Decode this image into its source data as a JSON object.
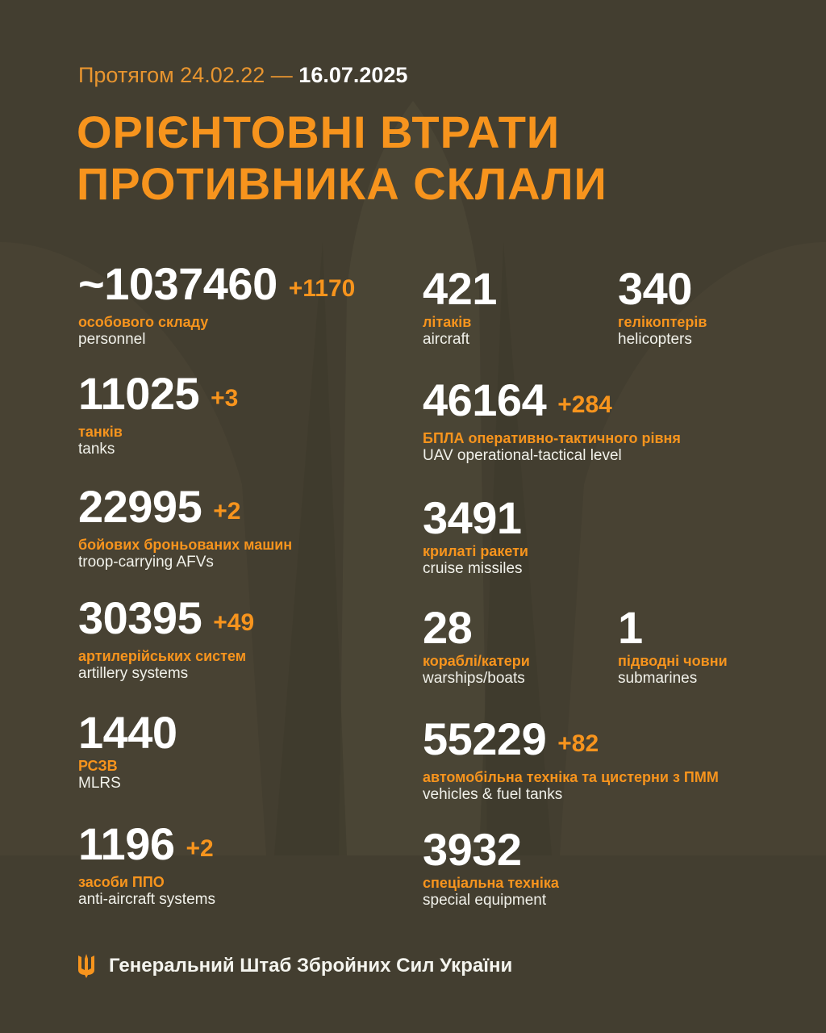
{
  "header": {
    "period_prefix": "Протягом 24.02.22 —",
    "period_date": "16.07.2025",
    "title_line1": "ОРІЄНТОВНІ ВТРАТИ",
    "title_line2": "ПРОТИВНИКА СКЛАЛИ"
  },
  "stats": [
    {
      "value": "~1037460",
      "delta": "+1170",
      "ua": "особового складу",
      "en": "personnel"
    },
    {
      "value": "11025",
      "delta": "+3",
      "ua": "танків",
      "en": "tanks"
    },
    {
      "value": "22995",
      "delta": "+2",
      "ua": "бойових броньованих машин",
      "en": "troop-carrying AFVs"
    },
    {
      "value": "30395",
      "delta": "+49",
      "ua": "артилерійських систем",
      "en": "artillery systems"
    },
    {
      "value": "1440",
      "delta": "",
      "ua": "РСЗВ",
      "en": "MLRS"
    },
    {
      "value": "1196",
      "delta": "+2",
      "ua": "засоби ППО",
      "en": "anti-aircraft systems"
    },
    {
      "value": "421",
      "delta": "",
      "ua": "літаків",
      "en": "aircraft"
    },
    {
      "value": "340",
      "delta": "",
      "ua": "гелікоптерів",
      "en": "helicopters"
    },
    {
      "value": "46164",
      "delta": "+284",
      "ua": "БПЛА оперативно-тактичного рівня",
      "en": "UAV operational-tactical level"
    },
    {
      "value": "3491",
      "delta": "",
      "ua": "крилаті ракети",
      "en": "cruise missiles"
    },
    {
      "value": "28",
      "delta": "",
      "ua": "кораблі/катери",
      "en": "warships/boats"
    },
    {
      "value": "1",
      "delta": "",
      "ua": "підводні човни",
      "en": "submarines"
    },
    {
      "value": "55229",
      "delta": "+82",
      "ua": "автомобільна техніка та цистерни з ПММ",
      "en": "vehicles & fuel tanks"
    },
    {
      "value": "3932",
      "delta": "",
      "ua": "спеціальна техніка",
      "en": "special equipment"
    }
  ],
  "footer": {
    "icon": "trident-icon",
    "text": "Генеральний Штаб Збройних Сил України"
  },
  "colors": {
    "background": "#433e30",
    "accent": "#f7941d",
    "text": "#ffffff"
  }
}
